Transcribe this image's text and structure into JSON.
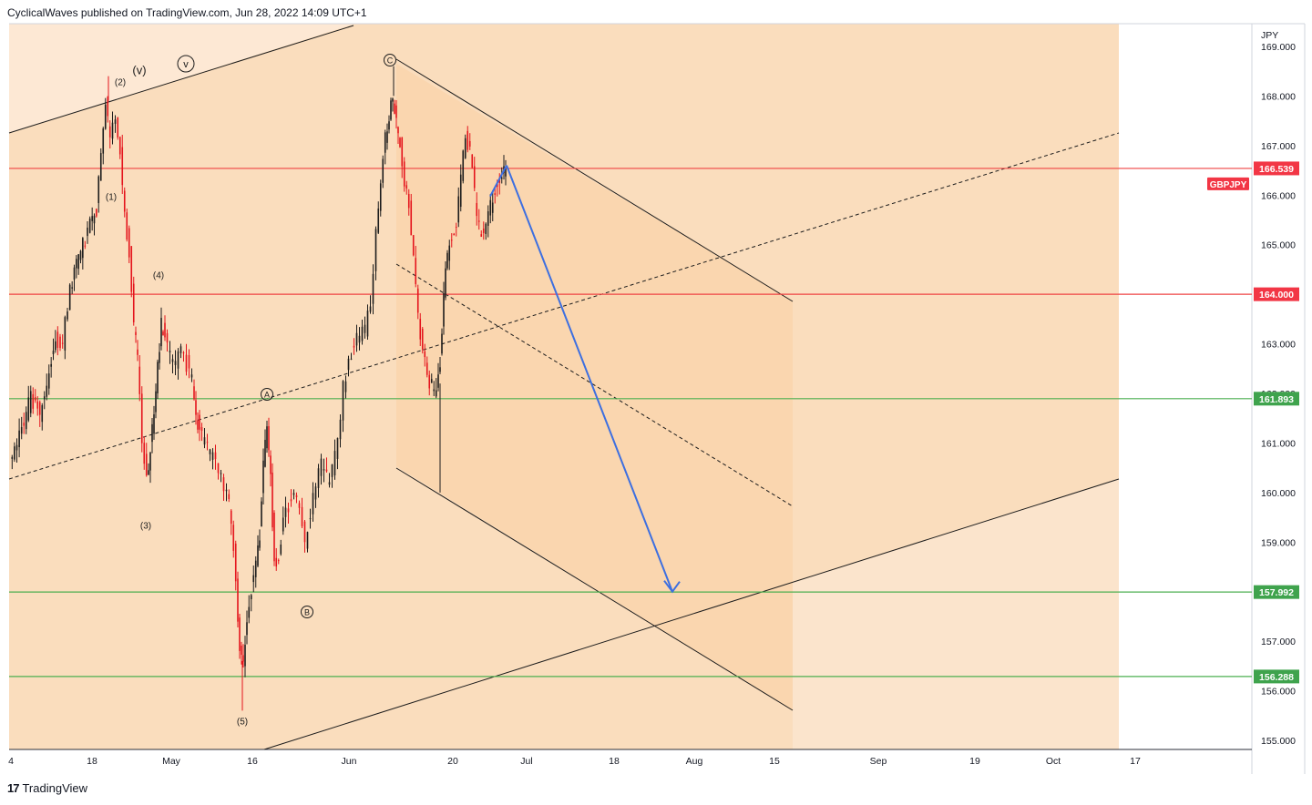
{
  "header": {
    "publisher_line": "CyclicalWaves published on TradingView.com, Jun 28, 2022 14:09 UTC+1"
  },
  "footer": {
    "brand_mark": "17",
    "brand_name": "TradingView"
  },
  "symbol": "GBPJPY",
  "currency": "JPY",
  "colors": {
    "up_candle": "#1c1c1c",
    "down_candle": "#e4141c",
    "red_line": "#ef4343",
    "green_line": "#4caf50",
    "arrow": "#3d6fe0",
    "zone_light": "#fbe4cc",
    "zone_mid": "#fad7b0",
    "zone_dark": "#f9d0a4",
    "red_badge": "#f23645",
    "green_badge": "#3fa34d"
  },
  "chart_data": {
    "type": "candlestick",
    "ylim": [
      154.8,
      169.3
    ],
    "y_ticks": [
      "155.000",
      "156.000",
      "157.000",
      "158.000",
      "159.000",
      "160.000",
      "161.000",
      "162.000",
      "163.000",
      "164.000",
      "165.000",
      "166.000",
      "167.000",
      "168.000",
      "169.000"
    ],
    "x_ticks": [
      "4",
      "18",
      "May",
      "16",
      "Jun",
      "20",
      "Jul",
      "18",
      "Aug",
      "15",
      "Sep",
      "19",
      "Oct",
      "17"
    ],
    "horizontal_levels": [
      {
        "value": 166.539,
        "label": "166.539",
        "color": "red",
        "tag": "GBPJPY"
      },
      {
        "value": 164.0,
        "label": "164.000",
        "color": "red"
      },
      {
        "value": 161.893,
        "label": "161.893",
        "color": "green"
      },
      {
        "value": 157.992,
        "label": "157.992",
        "color": "green"
      },
      {
        "value": 156.288,
        "label": "156.288",
        "color": "green"
      }
    ],
    "wave_labels": [
      "(1)",
      "(2)",
      "(3)",
      "(4)",
      "(5)",
      "(v)",
      "v",
      "A",
      "B",
      "C"
    ],
    "projection": {
      "from_value": 166.6,
      "to_value": 158.0
    }
  }
}
